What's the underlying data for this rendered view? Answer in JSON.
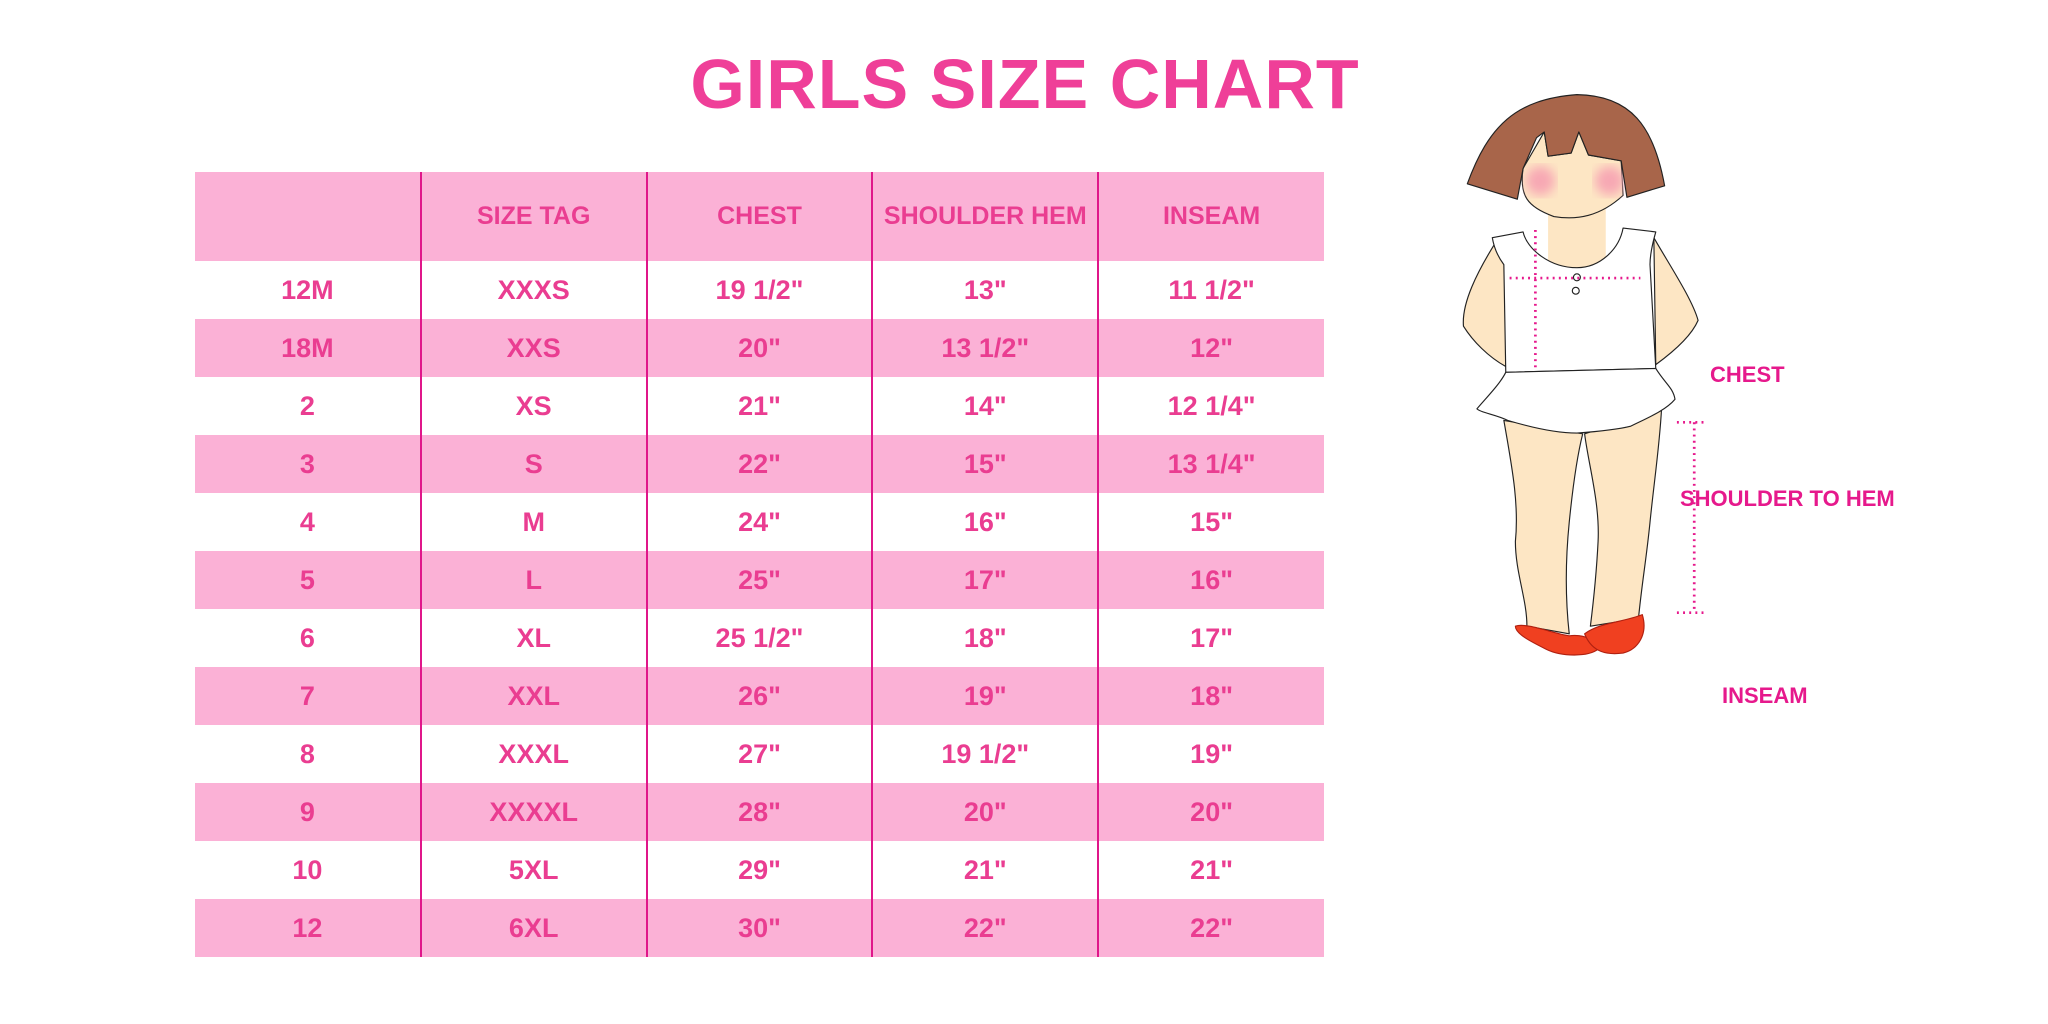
{
  "title": "GIRLS SIZE CHART",
  "table": {
    "headers": [
      "",
      "SIZE TAG",
      "CHEST",
      "SHOULDER HEM",
      "INSEAM"
    ],
    "rows": [
      [
        "12M",
        "XXXS",
        "19 1/2\"",
        "13\"",
        "11 1/2\""
      ],
      [
        "18M",
        "XXS",
        "20\"",
        "13 1/2\"",
        "12\""
      ],
      [
        "2",
        "XS",
        "21\"",
        "14\"",
        "12 1/4\""
      ],
      [
        "3",
        "S",
        "22\"",
        "15\"",
        "13 1/4\""
      ],
      [
        "4",
        "M",
        "24\"",
        "16\"",
        "15\""
      ],
      [
        "5",
        "L",
        "25\"",
        "17\"",
        "16\""
      ],
      [
        "6",
        "XL",
        "25 1/2\"",
        "18\"",
        "17\""
      ],
      [
        "7",
        "XXL",
        "26\"",
        "19\"",
        "18\""
      ],
      [
        "8",
        "XXXL",
        "27\"",
        "19 1/2\"",
        "19\""
      ],
      [
        "9",
        "XXXXL",
        "28\"",
        "20\"",
        "20\""
      ],
      [
        "10",
        "5XL",
        "29\"",
        "21\"",
        "21\""
      ],
      [
        "12",
        "6XL",
        "30\"",
        "22\"",
        "22\""
      ]
    ]
  },
  "figure": {
    "labels": {
      "chest": "CHEST",
      "shoulder_to_hem": "SHOULDER TO HEM",
      "inseam": "INSEAM"
    }
  },
  "colors": {
    "accent": "#ef3f98",
    "row_pink": "#fbb1d6",
    "divider": "#e0168a",
    "measure": "#e6198c"
  }
}
